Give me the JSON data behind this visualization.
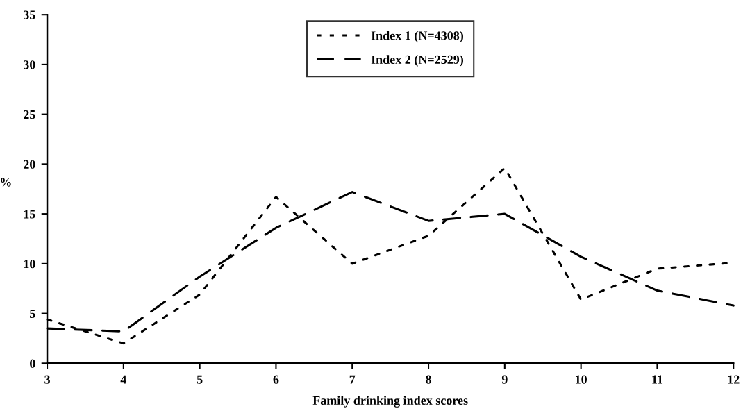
{
  "chart_data": {
    "type": "line",
    "xlabel": "Family drinking index scores",
    "ylabel": "%",
    "x": [
      3,
      4,
      5,
      6,
      7,
      8,
      9,
      10,
      11,
      12
    ],
    "series": [
      {
        "name": "Index 1 (N=4308)",
        "color": "#000000",
        "line_style": "dotted",
        "values": [
          4.4,
          2.0,
          6.9,
          16.7,
          10.0,
          12.8,
          19.6,
          6.4,
          9.5,
          10.1
        ]
      },
      {
        "name": "Index 2 (N=2529)",
        "color": "#000000",
        "line_style": "dashed",
        "values": [
          3.5,
          3.2,
          8.7,
          13.6,
          17.2,
          14.3,
          15.0,
          10.7,
          7.3,
          5.8
        ]
      }
    ],
    "xlim": [
      3,
      12
    ],
    "xticks": [
      3,
      4,
      5,
      6,
      7,
      8,
      9,
      10,
      11,
      12
    ],
    "ylim": [
      0,
      35
    ],
    "yticks": [
      0,
      5,
      10,
      15,
      20,
      25,
      30,
      35
    ],
    "grid": false,
    "legend": "top",
    "marker": "none"
  }
}
